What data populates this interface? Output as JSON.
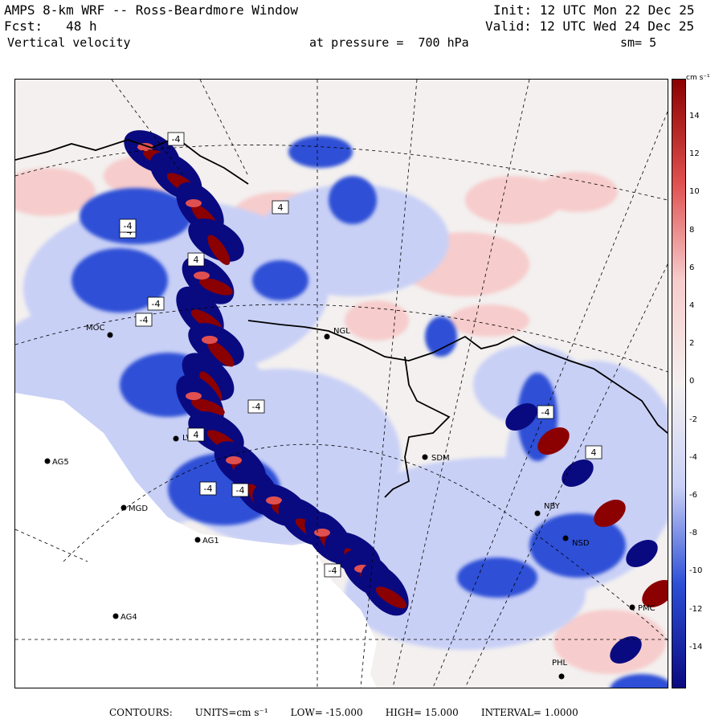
{
  "header": {
    "title": "AMPS 8-km WRF -- Ross-Beardmore Window",
    "forecast_label": "Fcst:",
    "forecast_value": "48 h",
    "field": "Vertical velocity",
    "init_label": "Init:",
    "init_value": "12 UTC Mon 22 Dec 25",
    "valid_label": "Valid:",
    "valid_value": "12 UTC Wed 24 Dec 25",
    "pressure_label": "at pressure =",
    "pressure_value": "700 hPa",
    "smoothing": "sm= 5"
  },
  "colors": {
    "strong_down": "#0a0a80",
    "down": "#2d4fd6",
    "weak_down": "#c9d0f6",
    "neutral": "#f3f0ef",
    "weak_up": "#f7cccc",
    "up": "#e05050",
    "strong_up": "#8b0000",
    "ice_shelf": "#ffffff"
  },
  "colorbar": {
    "units": "cm s⁻¹",
    "levels": [
      "14",
      "12",
      "10",
      "8",
      "6",
      "4",
      "2",
      "0",
      "-2",
      "-4",
      "-6",
      "-8",
      "-10",
      "-12",
      "-14"
    ],
    "range": [
      -15,
      15
    ]
  },
  "stations": [
    {
      "name": "MOC"
    },
    {
      "name": "NGL"
    },
    {
      "name": "LWR"
    },
    {
      "name": "AG5"
    },
    {
      "name": "SDM"
    },
    {
      "name": "MGD"
    },
    {
      "name": "NBY"
    },
    {
      "name": "AG1"
    },
    {
      "name": "NSD"
    },
    {
      "name": "AG4"
    },
    {
      "name": "PHL"
    },
    {
      "name": "PMC"
    }
  ],
  "contour_labels": [
    "-4",
    "-4",
    "-4",
    "4",
    "-4",
    "4",
    "-4",
    "-4",
    "-4",
    "4",
    "-4",
    "-4",
    "-4",
    "4"
  ],
  "footer": {
    "contours_label": "CONTOURS:",
    "units": "UNITS=cm s⁻¹",
    "low": "LOW= -15.000",
    "high": "HIGH= 15.000",
    "interval": "INTERVAL= 1.0000"
  }
}
